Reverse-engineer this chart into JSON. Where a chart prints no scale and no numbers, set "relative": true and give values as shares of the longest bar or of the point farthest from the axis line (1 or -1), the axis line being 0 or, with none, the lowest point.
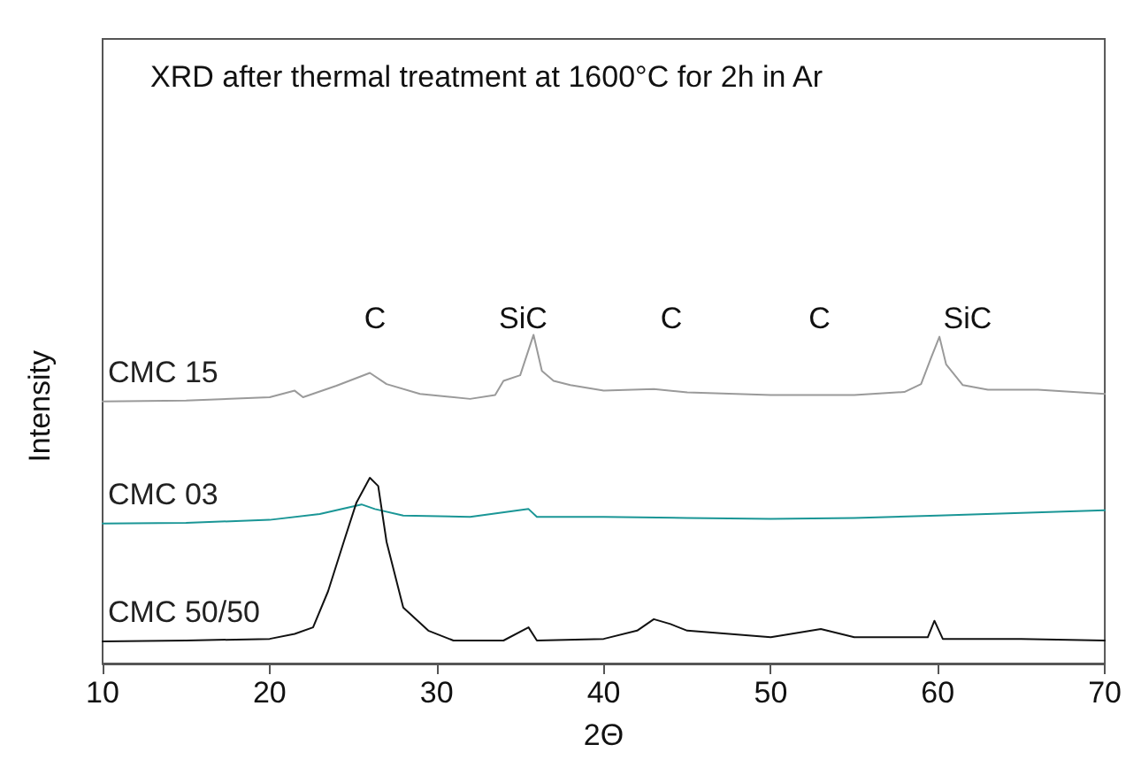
{
  "chart_data": {
    "type": "line",
    "relative": true,
    "title": "XRD after thermal treatment at 1600°C for 2h in Ar",
    "xlabel": "2Θ",
    "ylabel": "Intensity",
    "xlim": [
      10,
      70
    ],
    "xticks": [
      10,
      20,
      30,
      40,
      50,
      60,
      70
    ],
    "grid": false,
    "legend": false,
    "marker": "none",
    "line_style": "solid",
    "series": [
      {
        "name": "CMC 15",
        "color": "#9a9a9a",
        "x": [
          10,
          15,
          20,
          21.5,
          22,
          24,
          26,
          27,
          29,
          32,
          33.5,
          34,
          35,
          35.8,
          36.3,
          37,
          38,
          40,
          43,
          45,
          50,
          55,
          58,
          59,
          59.6,
          60.1,
          60.5,
          61.5,
          63,
          66,
          70
        ],
        "values": [
          0.797,
          0.8,
          0.81,
          0.83,
          0.81,
          0.845,
          0.884,
          0.85,
          0.82,
          0.805,
          0.817,
          0.86,
          0.877,
          1,
          0.89,
          0.86,
          0.847,
          0.83,
          0.835,
          0.825,
          0.817,
          0.817,
          0.826,
          0.85,
          0.93,
          0.994,
          0.91,
          0.847,
          0.833,
          0.833,
          0.82
        ]
      },
      {
        "name": "CMC 03",
        "color": "#1a9696",
        "x": [
          10,
          15,
          20,
          23,
          25.5,
          26.3,
          28,
          32,
          35.5,
          36,
          40,
          45,
          50,
          55,
          60,
          65,
          70
        ],
        "values": [
          0.426,
          0.428,
          0.437,
          0.455,
          0.484,
          0.47,
          0.45,
          0.446,
          0.47,
          0.446,
          0.446,
          0.443,
          0.44,
          0.443,
          0.45,
          0.458,
          0.466
        ]
      },
      {
        "name": "CMC 50/50",
        "color": "#111111",
        "x": [
          10,
          15,
          20,
          21.5,
          22.6,
          23.5,
          24.5,
          25.2,
          26,
          26.5,
          27,
          28,
          29.5,
          31,
          34,
          35.5,
          36,
          40,
          42,
          43,
          44,
          45,
          50,
          53,
          55,
          59.4,
          59.8,
          60.3,
          65,
          70
        ],
        "values": [
          0.067,
          0.07,
          0.075,
          0.09,
          0.11,
          0.22,
          0.38,
          0.49,
          0.565,
          0.54,
          0.37,
          0.17,
          0.1,
          0.07,
          0.07,
          0.11,
          0.07,
          0.075,
          0.1,
          0.135,
          0.12,
          0.1,
          0.08,
          0.105,
          0.08,
          0.08,
          0.13,
          0.075,
          0.075,
          0.07
        ]
      }
    ],
    "annotations": [
      "C",
      "SiC",
      "C",
      "C",
      "SiC"
    ]
  }
}
